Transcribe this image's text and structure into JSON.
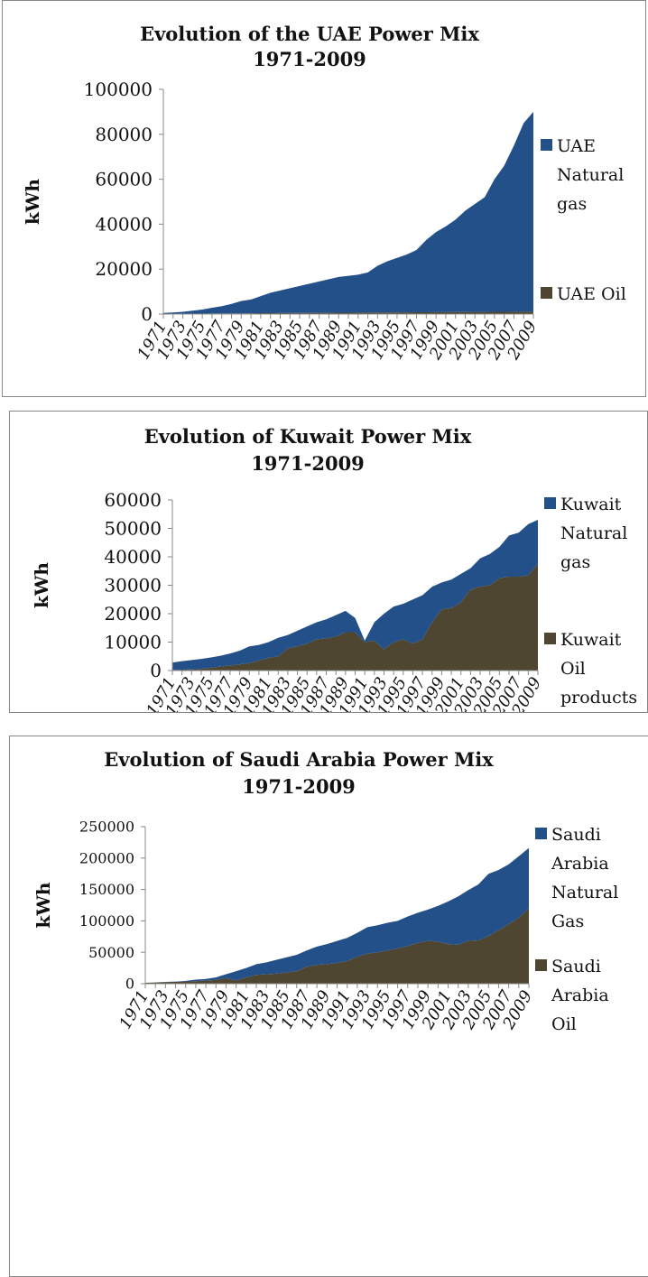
{
  "chart_data": [
    {
      "type": "stacked_area",
      "title": [
        "Evolution of the UAE Power Mix",
        "1971-2009"
      ],
      "y_label": "kWh",
      "categories": [
        "1971",
        null,
        "1973",
        null,
        "1975",
        null,
        "1977",
        null,
        "1979",
        null,
        "1981",
        null,
        "1983",
        null,
        "1985",
        null,
        "1987",
        null,
        "1989",
        null,
        "1991",
        null,
        "1993",
        null,
        "1995",
        null,
        "1997",
        null,
        "1999",
        null,
        "2001",
        null,
        "2003",
        null,
        "2005",
        null,
        "2007",
        null,
        "2009"
      ],
      "series": [
        {
          "name": "UAE Natural gas",
          "color": "#24508a",
          "values": [
            400,
            600,
            850,
            1300,
            1800,
            2550,
            3250,
            4200,
            5500,
            6150,
            7600,
            9100,
            10050,
            11050,
            12000,
            13000,
            13950,
            14950,
            15900,
            16400,
            16850,
            17850,
            20800,
            22800,
            24250,
            25750,
            27700,
            32200,
            35650,
            38150,
            41100,
            45100,
            48050,
            51050,
            59000,
            65000,
            73950,
            83950,
            88900
          ]
        },
        {
          "name": "UAE Oil",
          "color": "#4f4631",
          "values": [
            100,
            100,
            150,
            200,
            200,
            250,
            250,
            300,
            300,
            350,
            400,
            400,
            450,
            450,
            500,
            500,
            550,
            550,
            600,
            600,
            650,
            650,
            700,
            700,
            750,
            750,
            800,
            800,
            850,
            850,
            900,
            900,
            950,
            950,
            1000,
            1000,
            1050,
            1050,
            1100
          ]
        }
      ],
      "ylim": [
        0,
        100000
      ],
      "yticks": [
        0,
        20000,
        40000,
        60000,
        80000,
        100000
      ],
      "grid": false,
      "legend": "right"
    },
    {
      "type": "stacked_area",
      "title": [
        "Evolution of Kuwait Power Mix",
        "1971-2009"
      ],
      "y_label": "kWh",
      "categories": [
        "1971",
        null,
        "1973",
        null,
        "1975",
        null,
        "1977",
        null,
        "1979",
        null,
        "1981",
        null,
        "1983",
        null,
        "1985",
        null,
        "1987",
        null,
        "1989",
        null,
        "1991",
        null,
        "1993",
        null,
        "1995",
        null,
        "1997",
        null,
        "1999",
        null,
        "2001",
        null,
        "2003",
        null,
        "2005",
        null,
        "2007",
        null,
        "2009"
      ],
      "series": [
        {
          "name": "Kuwait Natural gas",
          "color": "#24508a",
          "values": [
            2600,
            3000,
            3300,
            3500,
            3600,
            3800,
            4200,
            4800,
            5900,
            5500,
            5500,
            6500,
            4700,
            5500,
            6000,
            6000,
            6700,
            7500,
            7500,
            5000,
            500,
            6500,
            12500,
            12500,
            12500,
            15500,
            15500,
            12500,
            9500,
            10000,
            10000,
            7500,
            10000,
            11000,
            11000,
            14500,
            15500,
            18000,
            15500
          ]
        },
        {
          "name": "Kuwait Oil products",
          "color": "#4f4631",
          "values": [
            200,
            300,
            400,
            600,
            1000,
            1400,
            1800,
            2200,
            2600,
            3500,
            4500,
            5000,
            7800,
            8500,
            9500,
            11000,
            11300,
            12000,
            13500,
            13500,
            10000,
            10500,
            7500,
            10000,
            11000,
            9500,
            11000,
            17000,
            21500,
            22000,
            24000,
            28500,
            29500,
            30000,
            32500,
            33000,
            33000,
            33500,
            37500
          ]
        }
      ],
      "ylim": [
        0,
        60000
      ],
      "yticks": [
        0,
        10000,
        20000,
        30000,
        40000,
        50000,
        60000
      ],
      "grid": false,
      "legend": "right"
    },
    {
      "type": "stacked_area",
      "title": [
        "Evolution of Saudi Arabia Power Mix",
        "1971-2009"
      ],
      "y_label": "kWh",
      "categories": [
        "1971",
        null,
        "1973",
        null,
        "1975",
        null,
        "1977",
        null,
        "1979",
        null,
        "1981",
        null,
        "1983",
        null,
        "1985",
        null,
        "1987",
        null,
        "1989",
        null,
        "1991",
        null,
        "1993",
        null,
        "1995",
        null,
        "1997",
        null,
        "1999",
        null,
        "2001",
        null,
        "2003",
        null,
        "2005",
        null,
        "2007",
        null,
        "2009"
      ],
      "series": [
        {
          "name": "Saudi Arabia Natural Gas",
          "color": "#24508a",
          "values": [
            0,
            0,
            300,
            500,
            1000,
            2500,
            2500,
            4000,
            6000,
            15000,
            15000,
            17000,
            19000,
            22000,
            24000,
            26000,
            26000,
            29000,
            32000,
            35000,
            37000,
            38000,
            42000,
            43000,
            44000,
            44000,
            47000,
            48000,
            50000,
            57000,
            68000,
            77000,
            81000,
            89000,
            99000,
            96000,
            95000,
            98000,
            96000
          ]
        },
        {
          "name": "Saudi Arabia Oil",
          "color": "#4f4631",
          "values": [
            1500,
            2000,
            2500,
            3000,
            3500,
            4000,
            5000,
            6000,
            9000,
            5000,
            10000,
            14000,
            15000,
            16000,
            18000,
            20000,
            27000,
            30000,
            31000,
            33000,
            36000,
            43000,
            48000,
            50000,
            53000,
            56000,
            60000,
            65000,
            68000,
            67000,
            63000,
            62000,
            68000,
            69000,
            76000,
            85000,
            95000,
            105000,
            120000
          ]
        }
      ],
      "ylim": [
        0,
        250000
      ],
      "yticks": [
        0,
        50000,
        100000,
        150000,
        200000,
        250000
      ],
      "grid": false,
      "legend": "right"
    }
  ]
}
